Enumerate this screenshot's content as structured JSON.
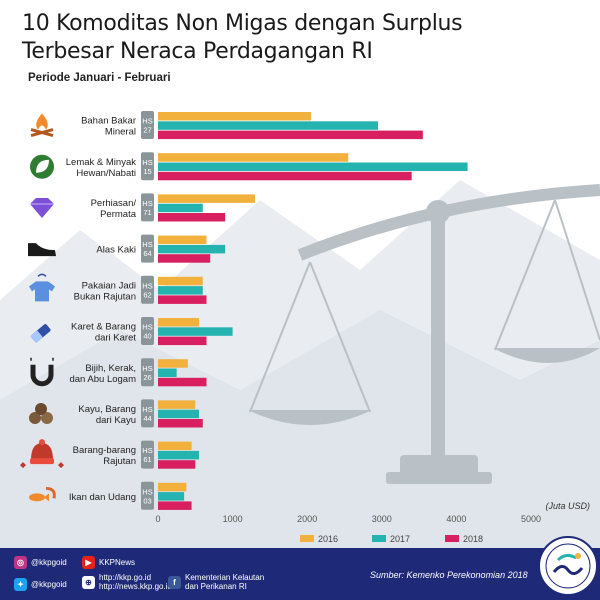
{
  "header": {
    "title_line1": "10 Komoditas Non Migas dengan Surplus",
    "title_line2": "Terbesar Neraca Perdagangan RI",
    "subtitle": "Periode Januari - Februari"
  },
  "chart_data": {
    "type": "bar",
    "orientation": "horizontal",
    "categories": [
      {
        "name_lines": [
          "Bahan Bakar",
          "Mineral"
        ],
        "hs": "27",
        "icon": "campfire-icon"
      },
      {
        "name_lines": [
          "Lemak & Minyak",
          "Hewan/Nabati"
        ],
        "hs": "15",
        "icon": "leaf-icon"
      },
      {
        "name_lines": [
          "Perhiasan/",
          "Permata"
        ],
        "hs": "71",
        "icon": "diamond-icon"
      },
      {
        "name_lines": [
          "Alas Kaki"
        ],
        "hs": "64",
        "icon": "shoe-icon"
      },
      {
        "name_lines": [
          "Pakaian Jadi",
          "Bukan Rajutan"
        ],
        "hs": "62",
        "icon": "shirt-icon"
      },
      {
        "name_lines": [
          "Karet & Barang",
          "dari Karet"
        ],
        "hs": "40",
        "icon": "rubber-icon"
      },
      {
        "name_lines": [
          "Bijih, Kerak,",
          "dan Abu Logam"
        ],
        "hs": "26",
        "icon": "magnet-icon"
      },
      {
        "name_lines": [
          "Kayu, Barang",
          "dari Kayu"
        ],
        "hs": "44",
        "icon": "wood-icon"
      },
      {
        "name_lines": [
          "Barang-barang",
          "Rajutan"
        ],
        "hs": "61",
        "icon": "knit-hat-icon"
      },
      {
        "name_lines": [
          "Ikan dan Udang"
        ],
        "hs": "03",
        "icon": "fish-icon"
      }
    ],
    "hs_label": "HS",
    "series": [
      {
        "name": "2016",
        "color": "#f2b03c",
        "values": [
          2050,
          2550,
          1300,
          650,
          600,
          550,
          400,
          500,
          450,
          380
        ]
      },
      {
        "name": "2017",
        "color": "#25b3b0",
        "values": [
          2950,
          4150,
          600,
          900,
          600,
          1000,
          250,
          550,
          550,
          350
        ]
      },
      {
        "name": "2018",
        "color": "#d81f5f",
        "values": [
          3550,
          3400,
          900,
          700,
          650,
          650,
          650,
          600,
          500,
          450
        ]
      }
    ],
    "x_ticks": [
      0,
      1000,
      2000,
      3000,
      4000,
      5000
    ],
    "xlim": [
      0,
      5000
    ],
    "unit_label": "(Juta USD)",
    "legend_position": "bottom"
  },
  "footer": {
    "instagram": "@kkpgoid",
    "youtube": "KKPNews",
    "twitter": "@kkpgoid",
    "web_line1": "http://kkp.go.id",
    "web_line2": "http://news.kkp.go.id",
    "facebook_line1": "Kementerian Kelautan",
    "facebook_line2": "dan Perikanan RI",
    "source": "Sumber: Kemenko Perekonomian 2018"
  }
}
